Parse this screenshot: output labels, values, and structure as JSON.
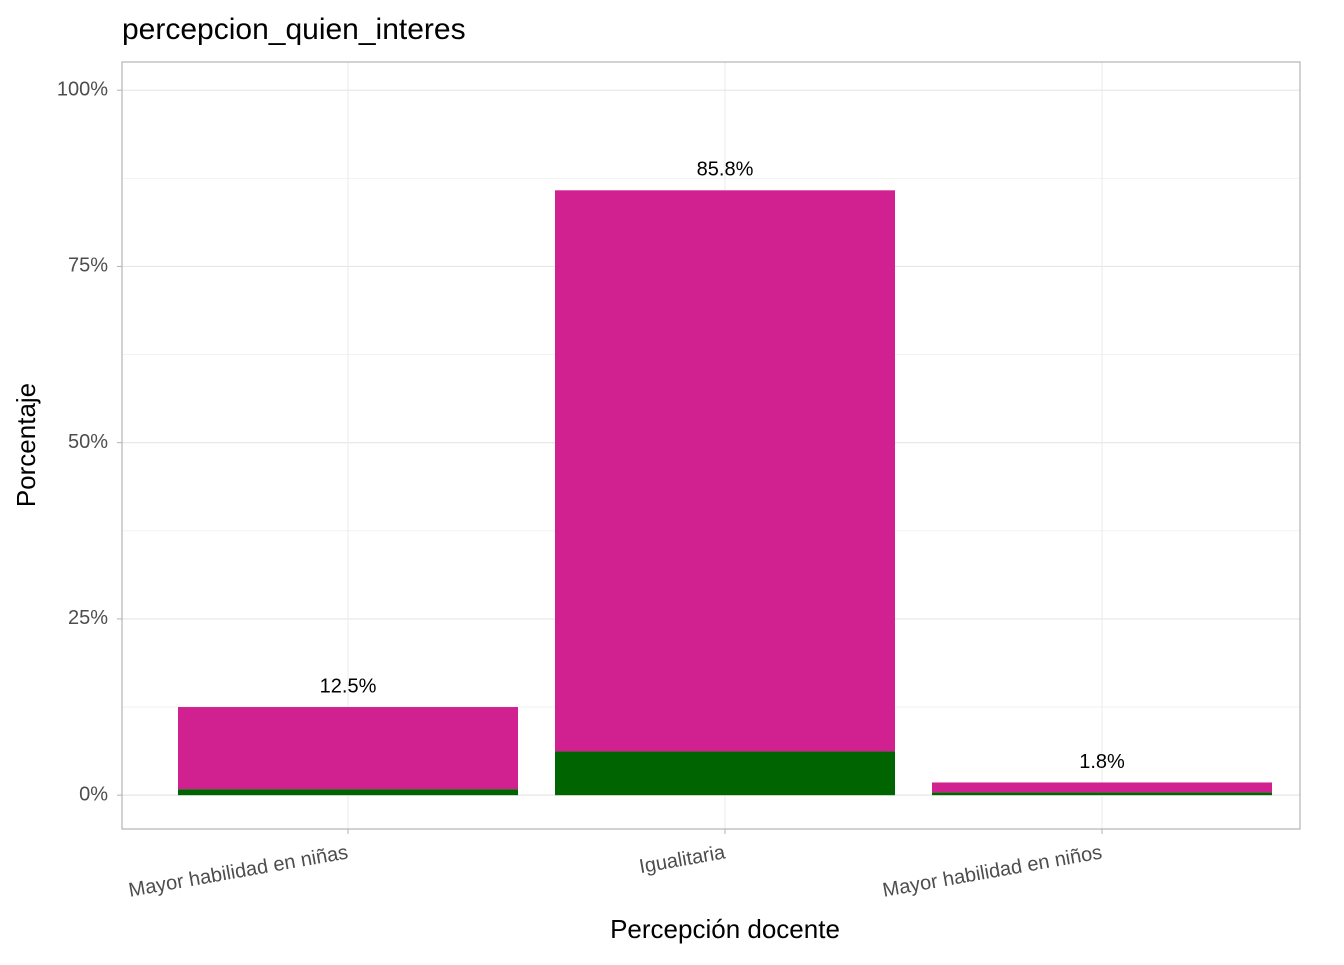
{
  "chart_data": {
    "type": "stacked_bar",
    "title": "percepcion_quien_interes",
    "x_label": "Percepción docente",
    "y_label": "Porcentaje",
    "categories": [
      "Mayor habilidad en niñas",
      "Igualitaria",
      "Mayor habilidad en niños"
    ],
    "series": [
      {
        "color": "#006400",
        "values": [
          0.85,
          6.2,
          0.4
        ]
      },
      {
        "color": "#d1208f",
        "values": [
          11.65,
          79.6,
          1.4
        ]
      }
    ],
    "totals": [
      12.5,
      85.8,
      1.8
    ],
    "total_labels": [
      "12.5%",
      "85.8%",
      "1.8%"
    ],
    "ylim": [
      -4.8,
      104
    ],
    "yticks": [
      {
        "value": 0,
        "label": "0%"
      },
      {
        "value": 25,
        "label": "25%"
      },
      {
        "value": 50,
        "label": "50%"
      },
      {
        "value": 75,
        "label": "75%"
      },
      {
        "value": 100,
        "label": "100%"
      }
    ],
    "minor_yticks": [
      12.5,
      37.5,
      62.5,
      87.5
    ],
    "grid": true
  }
}
